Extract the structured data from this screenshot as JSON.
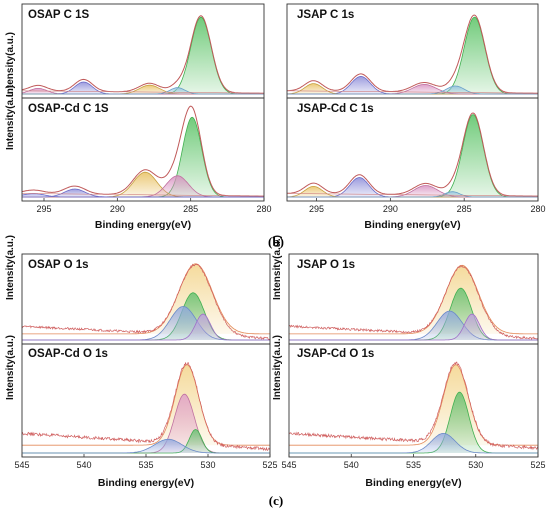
{
  "captions": [
    "(b)",
    "(c)"
  ],
  "chart_data": [
    {
      "type": "line",
      "title": "OSAP  C  1S",
      "xlabel": "",
      "ylabel": "Intensity(a.u.)",
      "xlim": [
        296.5,
        280
      ],
      "ylim": [
        0,
        1.05
      ],
      "xticks": [],
      "series": [
        {
          "name": "",
          "color": "#c05a5a",
          "fill": "none",
          "x": [
            296.5,
            295.5,
            295,
            294.5,
            293.5,
            292.7,
            292.2,
            291.5,
            290,
            288.5,
            287.7,
            287,
            286,
            285.5,
            285,
            284.6,
            284.3,
            284.1,
            283.6,
            283,
            282,
            280
          ],
          "values": [
            0.05,
            0.09,
            0.12,
            0.09,
            0.08,
            0.16,
            0.18,
            0.12,
            0.06,
            0.09,
            0.14,
            0.13,
            0.15,
            0.22,
            0.45,
            0.8,
            0.95,
            1.0,
            0.7,
            0.25,
            0.05,
            0.02
          ]
        },
        {
          "name": "",
          "color": "#40b050",
          "fill": "#59c264",
          "peak": true,
          "x": [],
          "values": [],
          "center": 284.3,
          "height": 0.96,
          "width": 0.7
        },
        {
          "name": "",
          "color": "#6a6ac8",
          "fill": "#8a8ad8",
          "peak": true,
          "x": [],
          "values": [],
          "center": 292.3,
          "height": 0.15,
          "width": 0.6
        },
        {
          "name": "",
          "color": "#c8a040",
          "fill": "#e8c060",
          "peak": true,
          "x": [],
          "values": [],
          "center": 287.8,
          "height": 0.11,
          "width": 0.7
        },
        {
          "name": "",
          "color": "#c070a0",
          "fill": "#d890c0",
          "peak": true,
          "x": [],
          "values": [],
          "center": 295.4,
          "height": 0.07,
          "width": 0.6
        },
        {
          "name": "",
          "color": "#6aa0c8",
          "fill": "#90c0e0",
          "peak": true,
          "x": [],
          "values": [],
          "center": 285.9,
          "height": 0.08,
          "width": 0.5
        }
      ]
    },
    {
      "type": "line",
      "title": "JSAP  C  1s",
      "xlabel": "",
      "ylabel": "",
      "xlim": [
        297,
        280
      ],
      "ylim": [
        0,
        1.05
      ],
      "xticks": [],
      "series": [
        {
          "name": "",
          "color": "#c05a5a",
          "fill": "none",
          "x": [],
          "values": []
        },
        {
          "name": "",
          "color": "#40b050",
          "fill": "#59c264",
          "peak": true,
          "x": [],
          "values": [],
          "center": 284.3,
          "height": 0.96,
          "width": 0.7
        },
        {
          "name": "",
          "color": "#6a6ac8",
          "fill": "#8a8ad8",
          "peak": true,
          "x": [],
          "values": [],
          "center": 292.0,
          "height": 0.22,
          "width": 0.65
        },
        {
          "name": "",
          "color": "#c8a040",
          "fill": "#e8c060",
          "peak": true,
          "x": [],
          "values": [],
          "center": 295.2,
          "height": 0.13,
          "width": 0.6
        },
        {
          "name": "",
          "color": "#c070a0",
          "fill": "#d890c0",
          "peak": true,
          "x": [],
          "values": [],
          "center": 287.7,
          "height": 0.12,
          "width": 0.8
        },
        {
          "name": "",
          "color": "#6aa0c8",
          "fill": "#90c0e0",
          "peak": true,
          "x": [],
          "values": [],
          "center": 285.6,
          "height": 0.1,
          "width": 0.6
        }
      ]
    },
    {
      "type": "line",
      "title": "OSAP-Cd  C  1S",
      "xlabel": "Binding energy(eV)",
      "ylabel": "Intensity(a.u.)",
      "xlim": [
        296.5,
        280
      ],
      "ylim": [
        0,
        1.05
      ],
      "xticks": [
        295,
        290,
        285,
        280
      ],
      "series": [
        {
          "name": "",
          "color": "#c05a5a",
          "fill": "none",
          "x": [],
          "values": []
        },
        {
          "name": "",
          "color": "#40b050",
          "fill": "#59c264",
          "peak": true,
          "x": [],
          "values": [],
          "center": 284.9,
          "height": 0.9,
          "width": 0.65
        },
        {
          "name": "",
          "color": "#c8a040",
          "fill": "#e8c060",
          "peak": true,
          "x": [],
          "values": [],
          "center": 288.1,
          "height": 0.28,
          "width": 0.8
        },
        {
          "name": "",
          "color": "#c070a0",
          "fill": "#d890c0",
          "peak": true,
          "x": [],
          "values": [],
          "center": 285.9,
          "height": 0.24,
          "width": 0.75
        },
        {
          "name": "",
          "color": "#6a6ac8",
          "fill": "#8a8ad8",
          "peak": true,
          "x": [],
          "values": [],
          "center": 292.9,
          "height": 0.09,
          "width": 0.7
        },
        {
          "name": "",
          "color": "#6a6ac8",
          "fill": "#9a9ae0",
          "peak": true,
          "x": [],
          "values": [],
          "center": 295.7,
          "height": 0.04,
          "width": 0.7
        }
      ]
    },
    {
      "type": "line",
      "title": "JSAP-Cd  C  1s",
      "xlabel": "Binding energy(eV)",
      "ylabel": "",
      "xlim": [
        297,
        280
      ],
      "ylim": [
        0,
        1.05
      ],
      "xticks": [
        295,
        290,
        285,
        280
      ],
      "series": [
        {
          "name": "",
          "color": "#c05a5a",
          "fill": "none",
          "x": [],
          "values": []
        },
        {
          "name": "",
          "color": "#40b050",
          "fill": "#59c264",
          "peak": true,
          "x": [],
          "values": [],
          "center": 284.4,
          "height": 0.93,
          "width": 0.7
        },
        {
          "name": "",
          "color": "#6a6ac8",
          "fill": "#8a8ad8",
          "peak": true,
          "x": [],
          "values": [],
          "center": 292.1,
          "height": 0.22,
          "width": 0.65
        },
        {
          "name": "",
          "color": "#c8a040",
          "fill": "#e8c060",
          "peak": true,
          "x": [],
          "values": [],
          "center": 295.2,
          "height": 0.12,
          "width": 0.6
        },
        {
          "name": "",
          "color": "#c070a0",
          "fill": "#d890c0",
          "peak": true,
          "x": [],
          "values": [],
          "center": 287.6,
          "height": 0.13,
          "width": 0.8
        },
        {
          "name": "",
          "color": "#6aa0c8",
          "fill": "#90c0e0",
          "peak": true,
          "x": [],
          "values": [],
          "center": 285.8,
          "height": 0.06,
          "width": 0.5
        }
      ]
    },
    {
      "type": "line",
      "title": "OSAP  O  1s",
      "xlabel": "",
      "ylabel": "Intensity(a.u.)",
      "xlim": [
        545,
        525
      ],
      "ylim": [
        0,
        1.05
      ],
      "xticks": [],
      "series": [
        {
          "name": "",
          "color": "#e38a5a",
          "fill": "#f3d48a",
          "peak": true,
          "x": [],
          "values": [],
          "center": 531.0,
          "height": 0.92,
          "width": 1.35,
          "baseline": 0.08
        },
        {
          "name": "",
          "color": "#40b050",
          "fill": "#66c070",
          "peak": true,
          "x": [],
          "values": [],
          "center": 531.2,
          "height": 0.62,
          "width": 0.9
        },
        {
          "name": "",
          "color": "#6a8ac8",
          "fill": "#90a8e0",
          "peak": true,
          "x": [],
          "values": [],
          "center": 532.0,
          "height": 0.44,
          "width": 1.05
        },
        {
          "name": "",
          "color": "#a070c8",
          "fill": "#c0a0e0",
          "peak": true,
          "x": [],
          "values": [],
          "center": 530.4,
          "height": 0.34,
          "width": 0.6
        },
        {
          "name": "",
          "color": "#d06060",
          "fill": "none",
          "noise": true,
          "x": [
            545,
            525
          ],
          "values": [
            0.18,
            0.02
          ]
        }
      ]
    },
    {
      "type": "line",
      "title": "JSAP  O  1s",
      "xlabel": "",
      "ylabel": "Intensity(a.u.)",
      "xlim": [
        545,
        525
      ],
      "ylim": [
        0,
        1.05
      ],
      "xticks": [],
      "series": [
        {
          "name": "",
          "color": "#e38a5a",
          "fill": "#f3d48a",
          "peak": true,
          "x": [],
          "values": [],
          "center": 531.1,
          "height": 0.9,
          "width": 1.3,
          "baseline": 0.08
        },
        {
          "name": "",
          "color": "#40b050",
          "fill": "#66c070",
          "peak": true,
          "x": [],
          "values": [],
          "center": 531.2,
          "height": 0.68,
          "width": 0.85
        },
        {
          "name": "",
          "color": "#6a8ac8",
          "fill": "#90a8e0",
          "peak": true,
          "x": [],
          "values": [],
          "center": 532.1,
          "height": 0.38,
          "width": 1.0
        },
        {
          "name": "",
          "color": "#a070c8",
          "fill": "#c0a0e0",
          "peak": true,
          "x": [],
          "values": [],
          "center": 530.3,
          "height": 0.34,
          "width": 0.6
        },
        {
          "name": "",
          "color": "#d06060",
          "fill": "none",
          "noise": true,
          "x": [
            545,
            525
          ],
          "values": [
            0.18,
            0.02
          ]
        }
      ]
    },
    {
      "type": "line",
      "title": "OSAP-Cd  O  1s",
      "xlabel": "Binding energy(eV)",
      "ylabel": "Intensity(a.u.)",
      "xlim": [
        545,
        525
      ],
      "ylim": [
        0,
        1.05
      ],
      "xticks": [
        545,
        540,
        535,
        530,
        525
      ],
      "series": [
        {
          "name": "",
          "color": "#e38a5a",
          "fill": "#f3d48a",
          "peak": true,
          "x": [],
          "values": [],
          "center": 531.7,
          "height": 0.82,
          "width": 0.95,
          "baseline": 0.08
        },
        {
          "name": "",
          "color": "#c070a0",
          "fill": "#e0a0c8",
          "peak": true,
          "x": [],
          "values": [],
          "center": 531.9,
          "height": 0.6,
          "width": 0.8
        },
        {
          "name": "",
          "color": "#40b050",
          "fill": "#66c070",
          "peak": true,
          "x": [],
          "values": [],
          "center": 531.0,
          "height": 0.24,
          "width": 0.5
        },
        {
          "name": "",
          "color": "#6a8ac8",
          "fill": "#90a8e0",
          "peak": true,
          "x": [],
          "values": [],
          "center": 533.2,
          "height": 0.14,
          "width": 1.1
        },
        {
          "name": "",
          "color": "#d06060",
          "fill": "none",
          "noise": true,
          "x": [
            545,
            525
          ],
          "values": [
            0.2,
            0.04
          ]
        }
      ]
    },
    {
      "type": "line",
      "title": "JSAP-Cd  O  1s",
      "xlabel": "Binding energy(eV)",
      "ylabel": "Intensity(a.u.)",
      "xlim": [
        545,
        525
      ],
      "ylim": [
        0,
        1.05
      ],
      "xticks": [
        545,
        540,
        535,
        530,
        525
      ],
      "series": [
        {
          "name": "",
          "color": "#e38a5a",
          "fill": "#f3d48a",
          "peak": true,
          "x": [],
          "values": [],
          "center": 531.6,
          "height": 0.82,
          "width": 1.0,
          "baseline": 0.08
        },
        {
          "name": "",
          "color": "#40b050",
          "fill": "#66c070",
          "peak": true,
          "x": [],
          "values": [],
          "center": 531.3,
          "height": 0.62,
          "width": 0.75
        },
        {
          "name": "",
          "color": "#6a8ac8",
          "fill": "#90a8e0",
          "peak": true,
          "x": [],
          "values": [],
          "center": 532.6,
          "height": 0.2,
          "width": 0.95
        },
        {
          "name": "",
          "color": "#d06060",
          "fill": "none",
          "noise": true,
          "x": [
            545,
            525
          ],
          "values": [
            0.2,
            0.05
          ]
        }
      ]
    }
  ]
}
